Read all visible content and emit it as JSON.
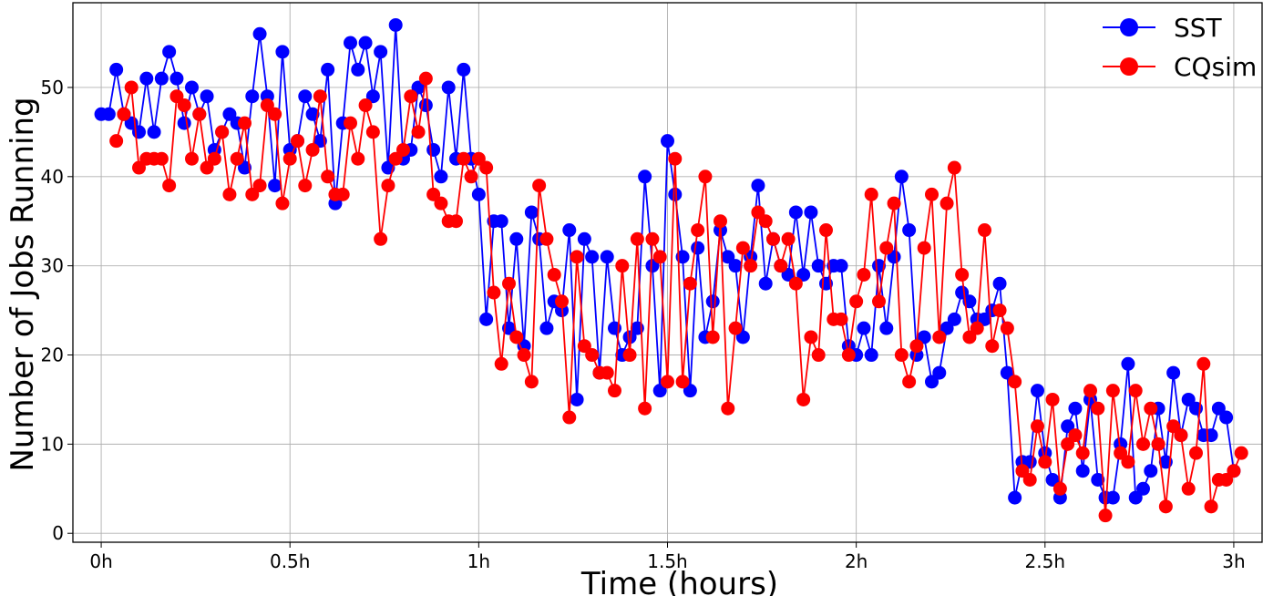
{
  "chart_data": {
    "type": "line",
    "title": "",
    "xlabel": "Time (hours)",
    "ylabel": "Number of Jobs Running",
    "xlim": [
      -0.075,
      3.075
    ],
    "ylim": [
      -1,
      59.5
    ],
    "x_ticks": [
      0,
      0.5,
      1,
      1.5,
      2,
      2.5,
      3
    ],
    "x_tick_labels": [
      "0h",
      "0.5h",
      "1h",
      "1.5h",
      "2h",
      "2.5h",
      "3h"
    ],
    "y_ticks": [
      0,
      10,
      20,
      30,
      40,
      50
    ],
    "y_tick_labels": [
      "0",
      "10",
      "20",
      "30",
      "40",
      "50"
    ],
    "grid": true,
    "legend": "top-right",
    "x_step_hours": 0.02,
    "series": [
      {
        "name": "SST",
        "color": "#0000ff",
        "marker": "circle",
        "values": [
          47,
          47,
          52,
          47,
          46,
          45,
          51,
          45,
          51,
          54,
          51,
          46,
          50,
          47,
          49,
          43,
          45,
          47,
          46,
          41,
          49,
          56,
          49,
          39,
          54,
          43,
          44,
          49,
          47,
          44,
          52,
          37,
          46,
          55,
          52,
          55,
          49,
          54,
          41,
          57,
          42,
          43,
          50,
          48,
          43,
          40,
          50,
          42,
          52,
          42,
          38,
          24,
          35,
          35,
          23,
          33,
          21,
          36,
          33,
          23,
          26,
          25,
          34,
          15,
          33,
          31,
          18,
          31,
          23,
          20,
          22,
          23,
          40,
          30,
          16,
          44,
          38,
          31,
          16,
          32,
          22,
          26,
          34,
          31,
          30,
          22,
          31,
          39,
          28,
          33,
          30,
          29,
          36,
          29,
          36,
          30,
          28,
          30,
          30,
          21,
          20,
          23,
          20,
          30,
          23,
          31,
          40,
          34,
          20,
          22,
          17,
          18,
          23,
          24,
          27,
          26,
          24,
          24,
          25,
          28,
          18,
          4,
          8,
          8,
          16,
          9,
          6,
          4,
          12,
          14,
          7,
          15,
          6,
          4,
          4,
          10,
          19,
          4,
          5,
          7,
          14,
          8,
          18,
          11,
          15,
          14,
          11,
          11,
          14,
          13,
          7
        ],
        "x_start": 0
      },
      {
        "name": "CQsim",
        "color": "#ff0000",
        "marker": "circle",
        "values": [
          44,
          47,
          50,
          41,
          42,
          42,
          42,
          39,
          49,
          48,
          42,
          47,
          41,
          42,
          45,
          38,
          42,
          46,
          38,
          39,
          48,
          47,
          37,
          42,
          44,
          39,
          43,
          49,
          40,
          38,
          38,
          46,
          42,
          48,
          45,
          33,
          39,
          42,
          43,
          49,
          45,
          51,
          38,
          37,
          35,
          35,
          42,
          40,
          42,
          41,
          27,
          19,
          28,
          22,
          20,
          17,
          39,
          33,
          29,
          26,
          13,
          31,
          21,
          20,
          18,
          18,
          16,
          30,
          20,
          33,
          14,
          33,
          31,
          17,
          42,
          17,
          28,
          34,
          40,
          22,
          35,
          14,
          23,
          32,
          30,
          36,
          35,
          33,
          30,
          33,
          28,
          15,
          22,
          20,
          34,
          24,
          24,
          20,
          26,
          29,
          38,
          26,
          32,
          37,
          20,
          17,
          21,
          32,
          38,
          22,
          37,
          41,
          29,
          22,
          23,
          34,
          21,
          25,
          23,
          17,
          7,
          6,
          12,
          8,
          15,
          5,
          10,
          11,
          9,
          16,
          14,
          2,
          16,
          9,
          8,
          16,
          10,
          14,
          10,
          3,
          12,
          11,
          5,
          9,
          19,
          3,
          6,
          6,
          7,
          9
        ],
        "x_start": 0.04
      }
    ]
  }
}
